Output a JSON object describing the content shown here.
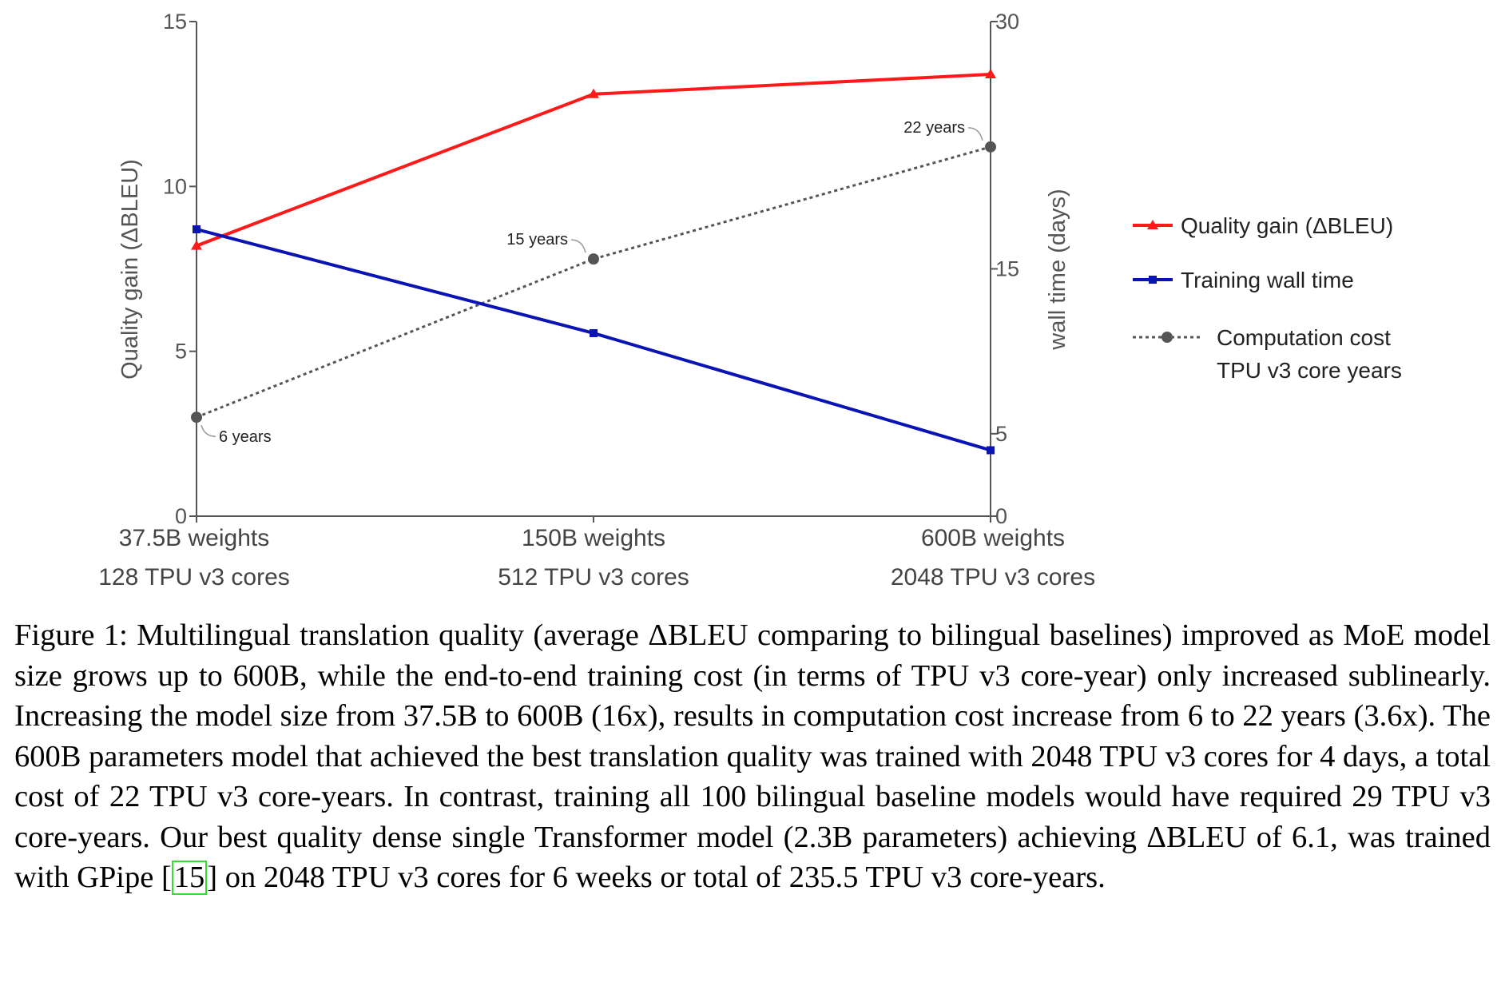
{
  "chart_data": {
    "type": "line",
    "categories": [
      [
        "37.5B weights",
        "128 TPU v3 cores"
      ],
      [
        "150B weights",
        "512 TPU v3 cores"
      ],
      [
        "600B weights",
        "2048 TPU v3 cores"
      ]
    ],
    "y_left": {
      "label": "Quality gain (ΔBLEU)",
      "range": [
        0,
        15
      ],
      "ticks": [
        "0",
        "5",
        "10",
        "15"
      ]
    },
    "y_right": {
      "label": "wall time (days)",
      "range": [
        0,
        30
      ],
      "ticks": [
        "0",
        "5",
        "15",
        "30"
      ]
    },
    "series": [
      {
        "name": "Quality gain (ΔBLEU)",
        "axis": "left",
        "color": "#ff1a1a",
        "marker": "triangle",
        "style": "solid",
        "values": [
          8.2,
          12.8,
          13.4
        ]
      },
      {
        "name": "Training wall time",
        "axis": "right",
        "color": "#0a14b4",
        "marker": "square",
        "style": "solid",
        "values": [
          17.4,
          11.1,
          4.0
        ]
      },
      {
        "name": "Computation cost",
        "axis": "left",
        "color": "#555555",
        "marker": "circle",
        "style": "dotted",
        "values": [
          3.0,
          7.8,
          11.2
        ],
        "labels": [
          "6 years",
          "15 years",
          "22 years"
        ]
      }
    ],
    "legend": {
      "placement": "right",
      "entries": [
        "Quality gain (ΔBLEU)",
        "Training wall time",
        "Computation cost",
        "TPU v3 core years"
      ]
    },
    "grid": false
  },
  "caption": {
    "before_ref": "Figure 1: Multilingual translation quality (average ΔBLEU comparing to bilingual baselines) improved as MoE model size grows up to 600B, while the end-to-end training cost (in terms of TPU v3 core-year) only increased sublinearly. Increasing the model size from 37.5B to 600B (16x), results in computation cost increase from 6 to 22 years (3.6x). The 600B parameters model that achieved the best translation quality was trained with 2048 TPU v3 cores for 4 days, a total cost of 22 TPU v3 core-years. In contrast, training all 100 bilingual baseline models would have required 29 TPU v3 core-years. Our best quality dense single Transformer model (2.3B parameters) achieving ΔBLEU of 6.1, was trained with GPipe [",
    "ref": "15",
    "after_ref": "] on 2048 TPU v3 cores for 6 weeks or total of 235.5 TPU v3 core-years."
  }
}
